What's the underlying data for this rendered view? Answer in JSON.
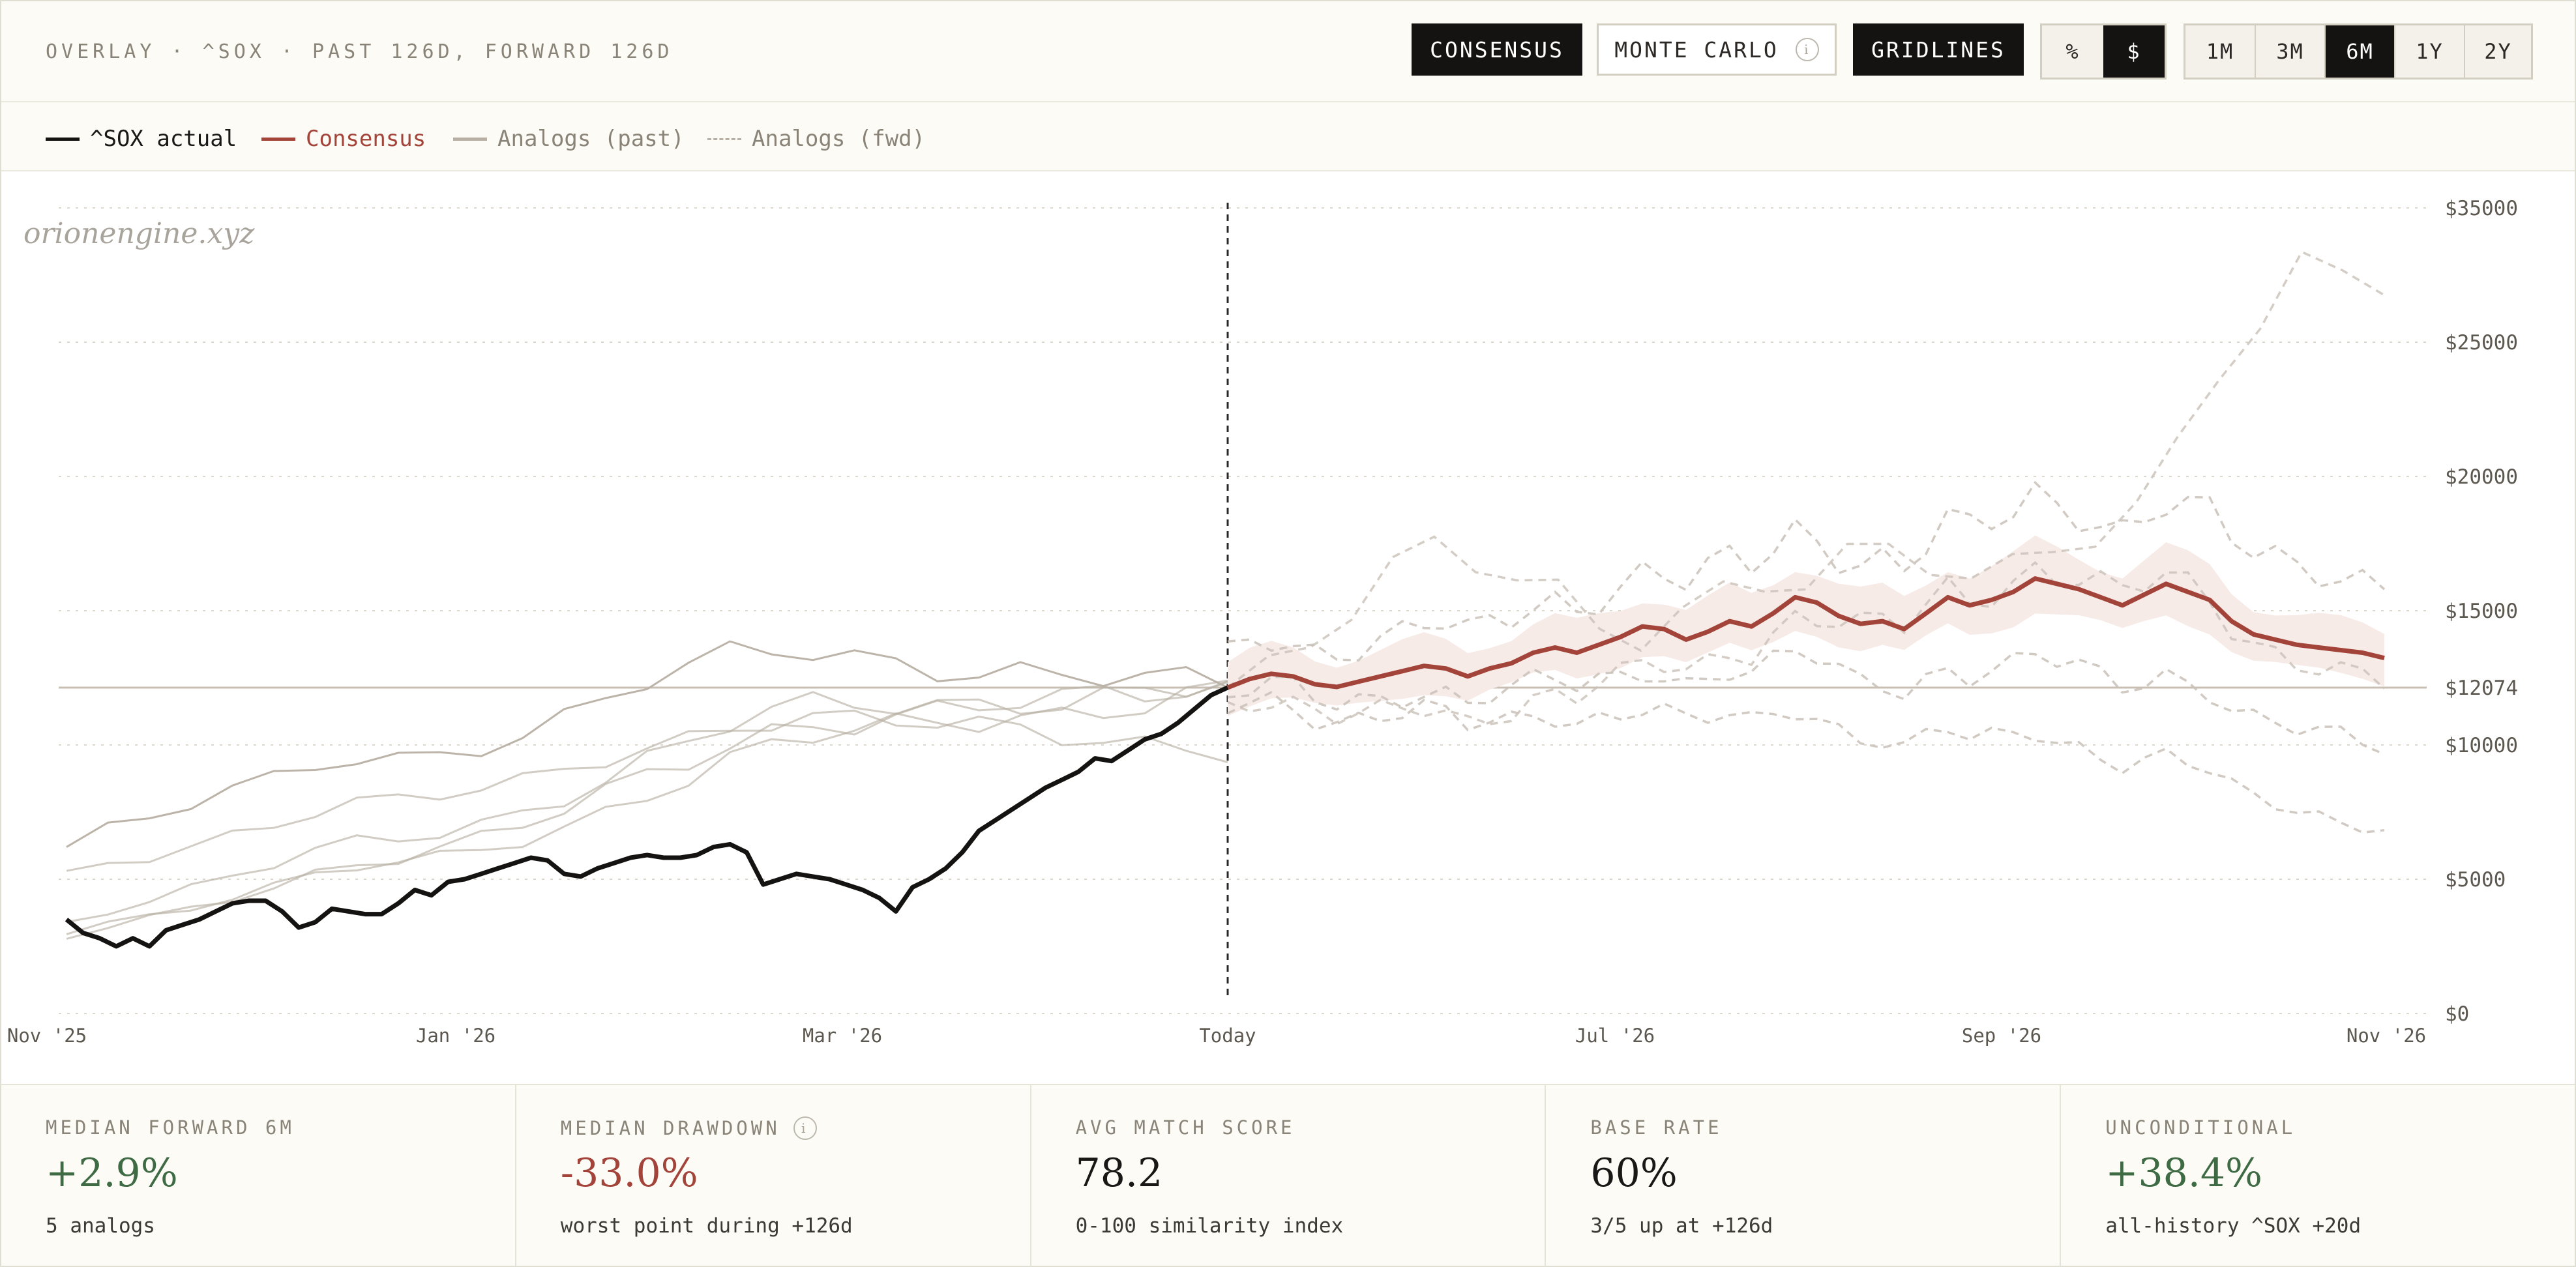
{
  "header": {
    "title": "OVERLAY · ^SOX · PAST 126D, FORWARD 126D",
    "buttons": {
      "consensus": "CONSENSUS",
      "monte_carlo": "MONTE CARLO",
      "gridlines": "GRIDLINES"
    },
    "unit_toggle": [
      "%",
      "$"
    ],
    "unit_selected": "$",
    "ranges": [
      "1M",
      "3M",
      "6M",
      "1Y",
      "2Y"
    ],
    "range_selected": "6M"
  },
  "legend": {
    "actual": "^SOX actual",
    "consensus": "Consensus",
    "analogs_past": "Analogs (past)",
    "analogs_fwd": "Analogs (fwd)"
  },
  "watermark": "orionengine.xyz",
  "colors": {
    "actual": "#141312",
    "consensus": "#a3443a",
    "band": "#f7ebe8",
    "analog_past": "#b8b0a4",
    "analog_fwd": "#c9c1b8",
    "baseline": "#c8bfb2"
  },
  "chart_data": {
    "type": "line",
    "x_axis_ticks": [
      "Nov '25",
      "Jan '26",
      "Mar '26",
      "Today",
      "Jul '26",
      "Sep '26",
      "Nov '26"
    ],
    "y_axis_ticks": [
      "$35000",
      "$25000",
      "$20000",
      "$15000",
      "$12074",
      "$10000",
      "$5000",
      "$0"
    ],
    "y_axis_scale": "non-linear",
    "reference_level": 12074,
    "series": [
      {
        "name": "^SOX actual",
        "values": [
          3500,
          3000,
          2800,
          2500,
          2800,
          2500,
          3100,
          3300,
          3500,
          3800,
          4100,
          4200,
          4200,
          3800,
          3200,
          3400,
          3900,
          3800,
          3700,
          3700,
          4100,
          4600,
          4400,
          4900,
          5000,
          5200,
          5400,
          5600,
          5800,
          5700,
          5200,
          5100,
          5400,
          5600,
          5800,
          5900,
          5800,
          5800,
          5900,
          6200,
          6300,
          6000,
          4800,
          5000,
          5200,
          5100,
          5000,
          4800,
          4600,
          4300,
          3800,
          4700,
          5000,
          5400,
          6000,
          6800,
          7200,
          7600,
          8000,
          8400,
          8700,
          9000,
          9500,
          9400,
          9800,
          10200,
          10400,
          10800,
          11300,
          11800,
          12074
        ]
      },
      {
        "name": "Consensus",
        "values": [
          12074,
          12400,
          12600,
          12500,
          12200,
          12100,
          12300,
          12500,
          12700,
          12900,
          12800,
          12500,
          12800,
          13000,
          13400,
          13600,
          13400,
          13700,
          14000,
          14400,
          14300,
          13900,
          14200,
          14600,
          14400,
          14900,
          15500,
          15300,
          14800,
          14500,
          14600,
          14300,
          14900,
          15500,
          15200,
          15400,
          15700,
          16200,
          16000,
          15800,
          15500,
          15200,
          15600,
          16000,
          15700,
          15400,
          14600,
          14100,
          13900,
          13700,
          13600,
          13500,
          13400,
          13200
        ]
      },
      {
        "name": "Analogs (past)",
        "values": [
          6200,
          6800,
          7200,
          7700,
          8200,
          8700,
          9300,
          9600,
          9600,
          9800,
          10100,
          10400,
          10900,
          11600,
          12200,
          12600,
          13200,
          13500,
          13500,
          13300,
          13200,
          13000,
          12800,
          12700,
          12500,
          12400,
          12300,
          12200,
          12074
        ]
      },
      {
        "name": "Analogs (fwd)",
        "values": [
          12074,
          12800,
          13500,
          14800,
          16500,
          17200,
          16800,
          16600,
          16000,
          14400,
          14100,
          15300,
          15600,
          15600,
          16000,
          17000,
          16800,
          16500,
          16600,
          16900,
          17200,
          18200,
          19500,
          21000,
          23500,
          26500,
          31000,
          29000,
          28500
        ]
      }
    ]
  },
  "stats": [
    {
      "label": "MEDIAN FORWARD 6M",
      "value": "+2.9%",
      "sub": "5 analogs",
      "tone": "pos",
      "info": false
    },
    {
      "label": "MEDIAN DRAWDOWN",
      "value": "-33.0%",
      "sub": "worst point during +126d",
      "tone": "neg",
      "info": true
    },
    {
      "label": "AVG MATCH SCORE",
      "value": "78.2",
      "sub": "0-100 similarity index",
      "tone": "neu",
      "info": false
    },
    {
      "label": "BASE RATE",
      "value": "60%",
      "sub": "3/5 up at +126d",
      "tone": "neu",
      "info": false
    },
    {
      "label": "UNCONDITIONAL",
      "value": "+38.4%",
      "sub": "all-history ^SOX +20d",
      "tone": "pos",
      "info": false
    }
  ]
}
